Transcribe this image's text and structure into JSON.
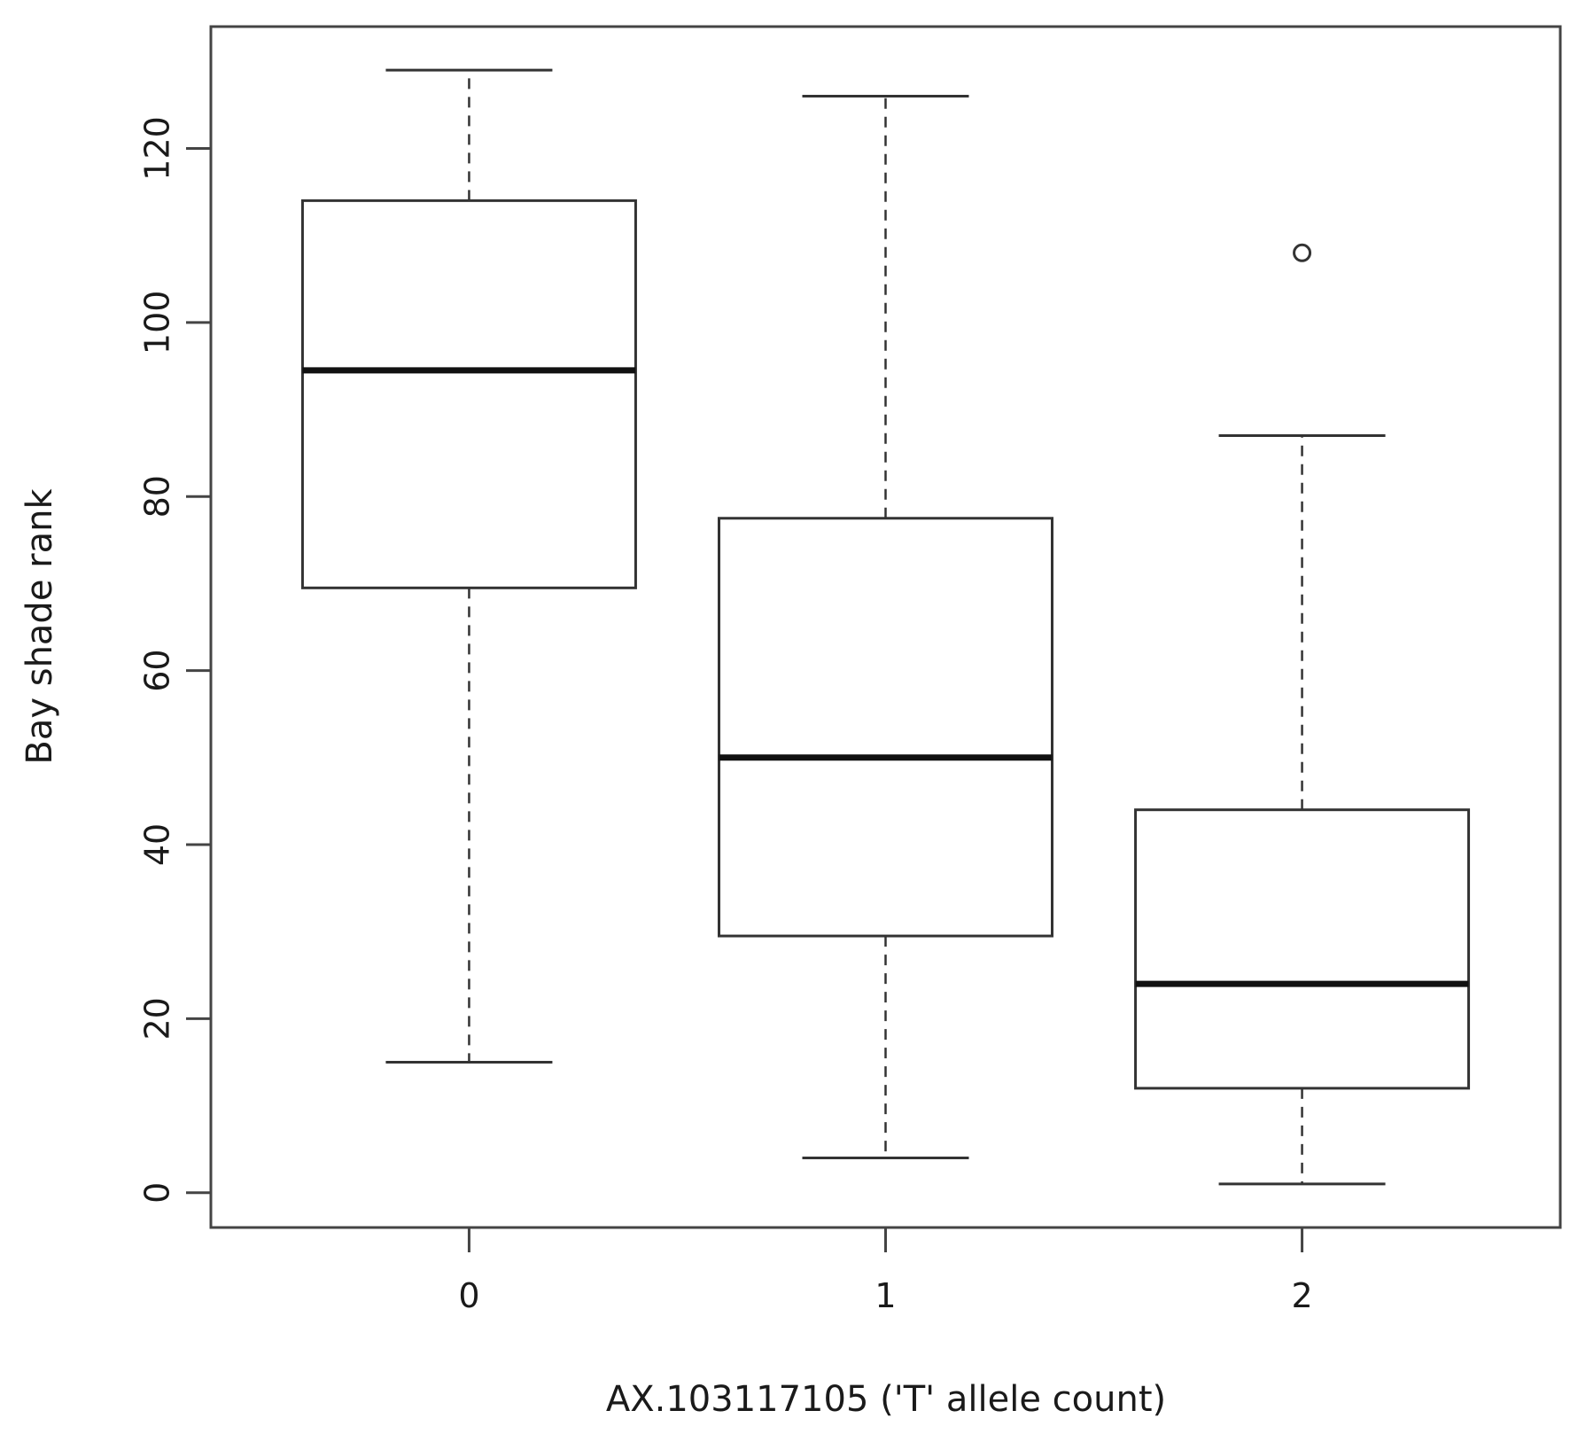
{
  "chart_data": {
    "type": "boxplot",
    "xlabel": "AX.103117105 ('T' allele count)",
    "ylabel": "Bay shade rank",
    "categories": [
      "0",
      "1",
      "2"
    ],
    "ylim": [
      -4,
      134
    ],
    "yticks": [
      0,
      20,
      40,
      60,
      80,
      100,
      120
    ],
    "ytick_labels": [
      "0",
      "20",
      "40",
      "60",
      "80",
      "100",
      "120"
    ],
    "boxes": [
      {
        "category": "0",
        "whisker_low": 15,
        "q1": 69.5,
        "median": 94.5,
        "q3": 114,
        "whisker_high": 129,
        "outliers": []
      },
      {
        "category": "1",
        "whisker_low": 4,
        "q1": 29.5,
        "median": 50,
        "q3": 77.5,
        "whisker_high": 126,
        "outliers": []
      },
      {
        "category": "2",
        "whisker_low": 1,
        "q1": 12,
        "median": 24,
        "q3": 44,
        "whisker_high": 87,
        "outliers": [
          108
        ]
      }
    ],
    "grid": false,
    "legend": "none"
  }
}
